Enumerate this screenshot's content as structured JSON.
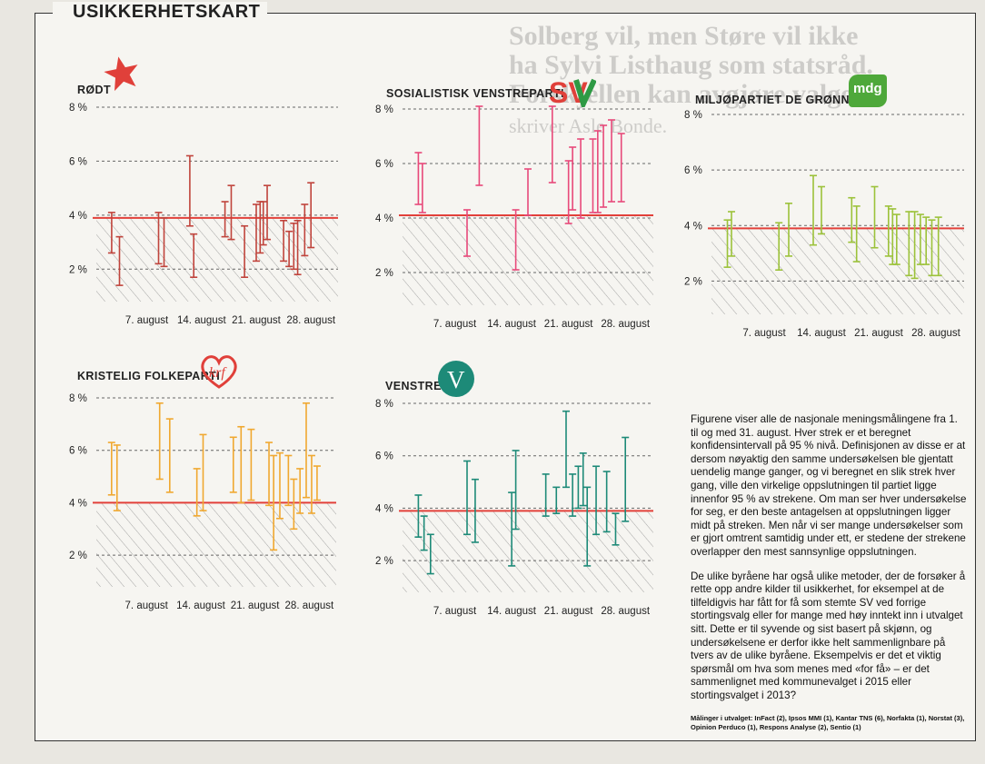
{
  "header": {
    "title": "USIKKERHETSKART"
  },
  "background_text": {
    "heading_lines": [
      "Solberg vil, men Støre vil ikke",
      "ha Sylvi Listhaug som statsråd.",
      "Forskjellen kan avgjøre valget."
    ],
    "byline": "skriver Asle Bonde."
  },
  "colors": {
    "reference_line": "#e2403a",
    "rodt": "#c0443c",
    "sv": "#e8497a",
    "mdg": "#9cc23a",
    "krf": "#f0a830",
    "venstre": "#1d8a78",
    "grid": "#666666",
    "hatch": "#8a8a8a"
  },
  "caption": {
    "paragraph1": "Figurene viser alle de nasjonale meningsmålingene fra 1. til og med 31. august. Hver strek er et beregnet konfidensintervall på 95 % nivå. Definisjonen av disse er at dersom nøyaktig den samme undersøkelsen ble gjentatt uendelig mange ganger, og vi beregnet en slik strek hver gang, ville den virkelige oppslutningen til partiet ligge innenfor 95 % av strekene. Om man ser hver undersøkelse for seg, er den beste antagelsen at oppslutningen ligger midt på streken. Men når vi ser mange undersøkelser som er gjort omtrent samtidig under ett, er stedene der strekene overlapper den mest sannsynlige oppslutningen.",
    "paragraph2": "De ulike byråene har også ulike metoder, der de forsøker å rette opp andre kilder til usikkerhet, for eksempel at de tilfeldigvis har fått for få som stemte SV ved forrige stortingsvalg eller for mange med høy inntekt inn i utvalget sitt. Dette er til syvende og sist basert på skjønn, og undersøkelsene er derfor ikke helt sammenlignbare på tvers av de ulike byråene. Eksempelvis er det et viktig spørsmål om hva som menes med «for få» – er det sammenlignet med kommunevalget i 2015 eller stortingsvalget i 2013?",
    "sources": "Målinger i utvalget: InFact (2), Ipsos MMI (1), Kantar TNS (6), Norfakta (1), Norstat (3), Opinion Perduco (1), Respons Analyse (2), Sentio (1)"
  },
  "logos": {
    "sv": "SV",
    "mdg": "mdg",
    "krf": "krf",
    "venstre": "V"
  },
  "chart_data": [
    {
      "type": "errorbar",
      "party": "RØDT",
      "logo_icon": "red-star-icon",
      "color_key": "rodt",
      "reference_value": 3.9,
      "ylim": [
        1,
        8
      ],
      "yticks": [
        "2 %",
        "4 %",
        "6 %",
        "8 %"
      ],
      "ytick_values": [
        2,
        4,
        6,
        8
      ],
      "xlim": [
        1,
        31
      ],
      "xticks": [
        "7. august",
        "14. august",
        "21. august",
        "28. august"
      ],
      "xtick_values": [
        7,
        14,
        21,
        28
      ],
      "intervals": [
        {
          "day": 2.5,
          "low": 2.6,
          "high": 4.1
        },
        {
          "day": 3.5,
          "low": 1.4,
          "high": 3.2
        },
        {
          "day": 8.5,
          "low": 2.2,
          "high": 4.1
        },
        {
          "day": 9.2,
          "low": 2.1,
          "high": 3.9
        },
        {
          "day": 12.5,
          "low": 3.6,
          "high": 6.2
        },
        {
          "day": 13,
          "low": 1.7,
          "high": 3.3
        },
        {
          "day": 17,
          "low": 3.2,
          "high": 4.5
        },
        {
          "day": 17.8,
          "low": 3.1,
          "high": 5.1
        },
        {
          "day": 19.5,
          "low": 1.7,
          "high": 3.6
        },
        {
          "day": 21,
          "low": 2.3,
          "high": 4.4
        },
        {
          "day": 21.5,
          "low": 2.6,
          "high": 4.5
        },
        {
          "day": 21.9,
          "low": 2.9,
          "high": 4.5
        },
        {
          "day": 22.4,
          "low": 3.1,
          "high": 5.1
        },
        {
          "day": 24.5,
          "low": 2.3,
          "high": 3.8
        },
        {
          "day": 25.2,
          "low": 2.1,
          "high": 3.4
        },
        {
          "day": 25.8,
          "low": 2,
          "high": 3.7
        },
        {
          "day": 26.3,
          "low": 1.8,
          "high": 3.8
        },
        {
          "day": 27.2,
          "low": 2.5,
          "high": 4.4
        },
        {
          "day": 28,
          "low": 2.8,
          "high": 5.2
        }
      ]
    },
    {
      "type": "errorbar",
      "party": "SOSIALISTISK VENSTREPARTI",
      "logo_icon": "sv-logo-icon",
      "color_key": "sv",
      "reference_value": 4.1,
      "ylim": [
        1,
        8
      ],
      "yticks": [
        "2 %",
        "4 %",
        "6 %",
        "8 %"
      ],
      "ytick_values": [
        2,
        4,
        6,
        8
      ],
      "xlim": [
        1,
        31
      ],
      "xticks": [
        "7. august",
        "14. august",
        "21. august",
        "28. august"
      ],
      "xtick_values": [
        7,
        14,
        21,
        28
      ],
      "intervals": [
        {
          "day": 2.5,
          "low": 4.5,
          "high": 6.4
        },
        {
          "day": 3,
          "low": 4.2,
          "high": 6
        },
        {
          "day": 8.5,
          "low": 2.6,
          "high": 4.3
        },
        {
          "day": 10,
          "low": 5.2,
          "high": 8.1
        },
        {
          "day": 14.5,
          "low": 2.1,
          "high": 4.3
        },
        {
          "day": 16,
          "low": 4.1,
          "high": 5.8
        },
        {
          "day": 19,
          "low": 5.3,
          "high": 8.1
        },
        {
          "day": 21,
          "low": 3.8,
          "high": 6.1
        },
        {
          "day": 21.5,
          "low": 4.3,
          "high": 6.6
        },
        {
          "day": 22.5,
          "low": 4,
          "high": 6.9
        },
        {
          "day": 24,
          "low": 4.2,
          "high": 6.9
        },
        {
          "day": 24.6,
          "low": 4.2,
          "high": 7.2
        },
        {
          "day": 25.3,
          "low": 4.4,
          "high": 7.4
        },
        {
          "day": 26.3,
          "low": 4.6,
          "high": 7.6
        },
        {
          "day": 27.5,
          "low": 4.6,
          "high": 7.1
        }
      ]
    },
    {
      "type": "errorbar",
      "party": "MILJØPARTIET DE GRØNNE",
      "logo_icon": "mdg-logo-icon",
      "color_key": "mdg",
      "reference_value": 3.9,
      "ylim": [
        1,
        8
      ],
      "yticks": [
        "2 %",
        "4 %",
        "6 %",
        "8 %"
      ],
      "ytick_values": [
        2,
        4,
        6,
        8
      ],
      "xlim": [
        1,
        31
      ],
      "xticks": [
        "7. august",
        "14. august",
        "21. august",
        "28. august"
      ],
      "xtick_values": [
        7,
        14,
        21,
        28
      ],
      "intervals": [
        {
          "day": 2.5,
          "low": 2.5,
          "high": 4.2
        },
        {
          "day": 3,
          "low": 2.9,
          "high": 4.5
        },
        {
          "day": 8.8,
          "low": 2.4,
          "high": 4.1
        },
        {
          "day": 10,
          "low": 2.9,
          "high": 4.8
        },
        {
          "day": 13,
          "low": 3.3,
          "high": 5.8
        },
        {
          "day": 14,
          "low": 3.7,
          "high": 5.4
        },
        {
          "day": 17.7,
          "low": 3.4,
          "high": 5
        },
        {
          "day": 18.3,
          "low": 2.7,
          "high": 4.7
        },
        {
          "day": 20.5,
          "low": 3.2,
          "high": 5.4
        },
        {
          "day": 22.2,
          "low": 2.9,
          "high": 4.7
        },
        {
          "day": 22.7,
          "low": 2.6,
          "high": 4.6
        },
        {
          "day": 23.2,
          "low": 2.6,
          "high": 4.4
        },
        {
          "day": 24.7,
          "low": 2.2,
          "high": 4.5
        },
        {
          "day": 25.4,
          "low": 2.1,
          "high": 4.5
        },
        {
          "day": 26.1,
          "low": 2.6,
          "high": 4.4
        },
        {
          "day": 26.8,
          "low": 2.6,
          "high": 4.3
        },
        {
          "day": 27.5,
          "low": 2.2,
          "high": 4.2
        },
        {
          "day": 28.3,
          "low": 2.2,
          "high": 4.3
        }
      ]
    },
    {
      "type": "errorbar",
      "party": "KRISTELIG FOLKEPARTI",
      "logo_icon": "krf-heart-logo-icon",
      "color_key": "krf",
      "reference_value": 4,
      "ylim": [
        1,
        8
      ],
      "yticks": [
        "2 %",
        "4 %",
        "6 %",
        "8 %"
      ],
      "ytick_values": [
        2,
        4,
        6,
        8
      ],
      "xlim": [
        1,
        31
      ],
      "xticks": [
        "7. august",
        "14. august",
        "21. august",
        "28. august"
      ],
      "xtick_values": [
        7,
        14,
        21,
        28
      ],
      "intervals": [
        {
          "day": 2.5,
          "low": 4.3,
          "high": 6.3
        },
        {
          "day": 3.2,
          "low": 3.7,
          "high": 6.2
        },
        {
          "day": 8.7,
          "low": 4.9,
          "high": 7.8
        },
        {
          "day": 10,
          "low": 4.4,
          "high": 7.2
        },
        {
          "day": 13.5,
          "low": 3.5,
          "high": 5.3
        },
        {
          "day": 14.3,
          "low": 3.7,
          "high": 6.6
        },
        {
          "day": 18.2,
          "low": 4.4,
          "high": 6.5
        },
        {
          "day": 19.2,
          "low": 4,
          "high": 6.9
        },
        {
          "day": 20.5,
          "low": 4.1,
          "high": 6.8
        },
        {
          "day": 22.8,
          "low": 3.9,
          "high": 6.3
        },
        {
          "day": 23.4,
          "low": 2.2,
          "high": 5.8
        },
        {
          "day": 24.2,
          "low": 3.4,
          "high": 5.9
        },
        {
          "day": 25.3,
          "low": 3.9,
          "high": 5.8
        },
        {
          "day": 26,
          "low": 3,
          "high": 4.9
        },
        {
          "day": 26.8,
          "low": 3.6,
          "high": 5.3
        },
        {
          "day": 27.6,
          "low": 4.2,
          "high": 7.8
        },
        {
          "day": 28.3,
          "low": 3.6,
          "high": 5.8
        },
        {
          "day": 29,
          "low": 4.1,
          "high": 5.4
        }
      ]
    },
    {
      "type": "errorbar",
      "party": "VENSTRE",
      "logo_icon": "venstre-logo-icon",
      "color_key": "venstre",
      "reference_value": 3.9,
      "ylim": [
        1,
        8
      ],
      "yticks": [
        "2 %",
        "4 %",
        "6 %",
        "8 %"
      ],
      "ytick_values": [
        2,
        4,
        6,
        8
      ],
      "xlim": [
        1,
        31
      ],
      "xticks": [
        "7. august",
        "14. august",
        "21. august",
        "28. august"
      ],
      "xtick_values": [
        7,
        14,
        21,
        28
      ],
      "intervals": [
        {
          "day": 2.5,
          "low": 2.9,
          "high": 4.5
        },
        {
          "day": 3.2,
          "low": 2.4,
          "high": 3.7
        },
        {
          "day": 4,
          "low": 1.5,
          "high": 3
        },
        {
          "day": 8.5,
          "low": 3,
          "high": 5.8
        },
        {
          "day": 9.5,
          "low": 2.7,
          "high": 5.1
        },
        {
          "day": 14,
          "low": 1.8,
          "high": 4.6
        },
        {
          "day": 14.5,
          "low": 3.2,
          "high": 6.2
        },
        {
          "day": 18.2,
          "low": 3.7,
          "high": 5.3
        },
        {
          "day": 19.5,
          "low": 3.8,
          "high": 4.8
        },
        {
          "day": 20.7,
          "low": 4.8,
          "high": 7.7
        },
        {
          "day": 21.5,
          "low": 3.7,
          "high": 5.3
        },
        {
          "day": 22.2,
          "low": 4,
          "high": 5.6
        },
        {
          "day": 22.8,
          "low": 4.1,
          "high": 6.1
        },
        {
          "day": 23.3,
          "low": 1.8,
          "high": 4.8
        },
        {
          "day": 24.4,
          "low": 3,
          "high": 5.6
        },
        {
          "day": 25.7,
          "low": 3.1,
          "high": 5.4
        },
        {
          "day": 26.8,
          "low": 2.6,
          "high": 3.8
        },
        {
          "day": 28,
          "low": 3.5,
          "high": 6.7
        }
      ]
    }
  ]
}
